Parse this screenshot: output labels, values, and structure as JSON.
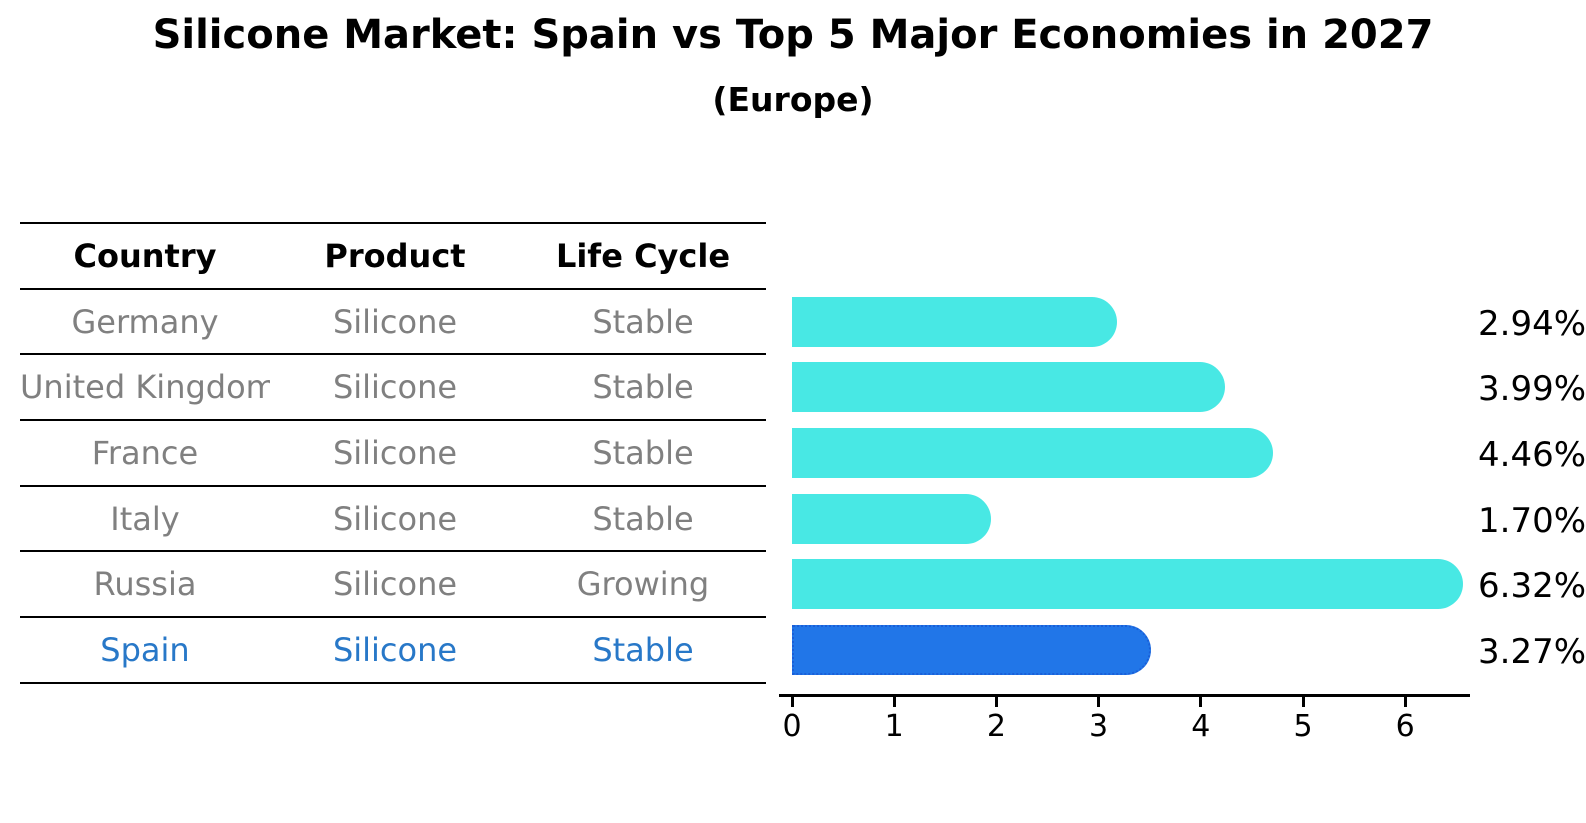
{
  "title": "Silicone Market: Spain vs Top 5 Major Economies in 2027",
  "subtitle": "(Europe)",
  "table": {
    "headers": [
      "Country",
      "Product",
      "Life Cycle"
    ],
    "rows": [
      {
        "country": "Germany",
        "product": "Silicone",
        "life_cycle": "Stable",
        "highlighted": false
      },
      {
        "country": "United Kingdom",
        "product": "Silicone",
        "life_cycle": "Stable",
        "highlighted": false
      },
      {
        "country": "France",
        "product": "Silicone",
        "life_cycle": "Stable",
        "highlighted": false
      },
      {
        "country": "Italy",
        "product": "Silicone",
        "life_cycle": "Stable",
        "highlighted": false
      },
      {
        "country": "Russia",
        "product": "Silicone",
        "life_cycle": "Growing",
        "highlighted": false
      },
      {
        "country": "Spain",
        "product": "Silicone",
        "life_cycle": "Stable",
        "highlighted": true
      }
    ]
  },
  "chart_data": {
    "type": "bar",
    "orientation": "horizontal",
    "title": "Silicone Market: Spain vs Top 5 Major Economies in 2027",
    "subtitle": "(Europe)",
    "categories": [
      "Germany",
      "United Kingdom",
      "France",
      "Italy",
      "Russia",
      "Spain"
    ],
    "values": [
      2.94,
      3.99,
      4.46,
      1.7,
      6.32,
      3.27
    ],
    "value_labels": [
      "2.94%",
      "3.99%",
      "4.46%",
      "1.70%",
      "6.32%",
      "3.27%"
    ],
    "x_ticks": [
      "0",
      "1",
      "2",
      "3",
      "4",
      "5",
      "6"
    ],
    "xlim": [
      0,
      6.6
    ],
    "grid": false,
    "legend": false,
    "highlight_index": 5
  },
  "colors": {
    "bar": "#48E8E4",
    "highlight_bar_fill": "#2176E8",
    "highlight_bar_border": "#1A5FD8",
    "highlight_text": "#2878C8",
    "row_text": "#808080",
    "header_text": "#000000",
    "axis": "#000000"
  }
}
